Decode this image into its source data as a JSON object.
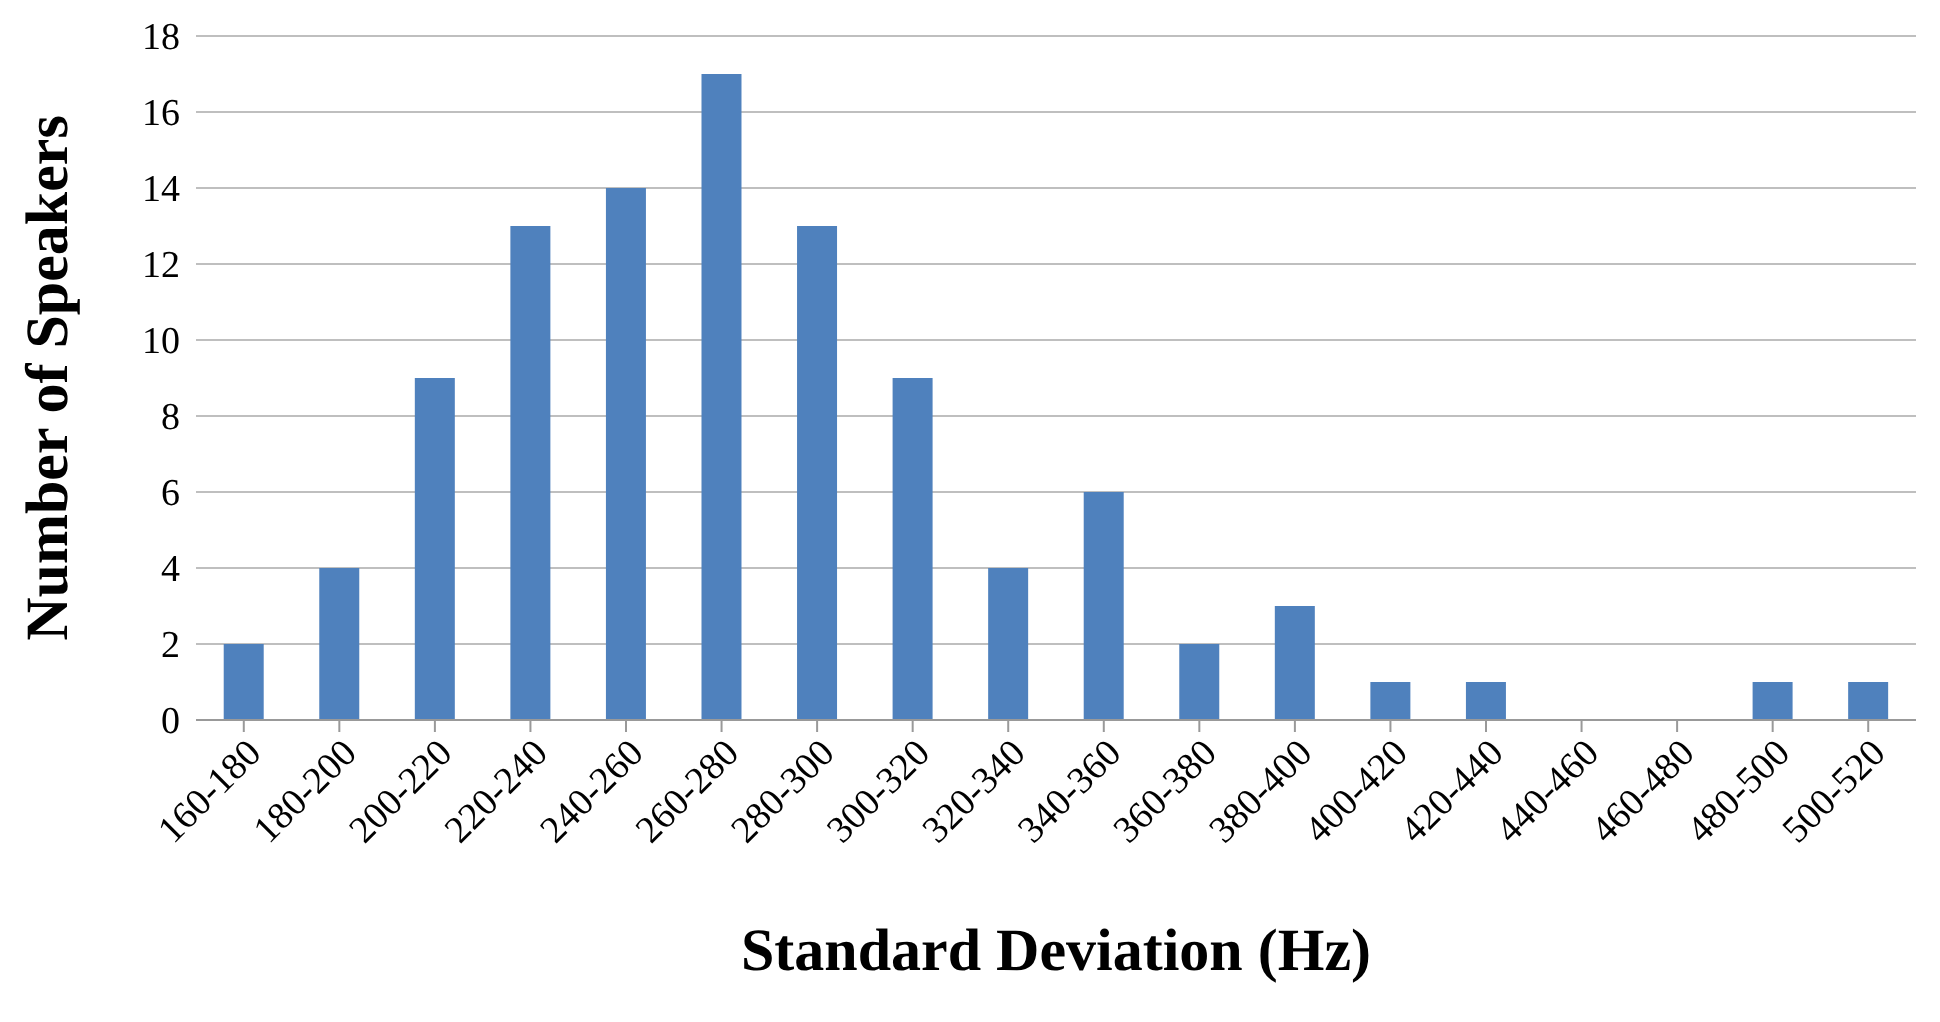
{
  "chart_data": {
    "type": "bar",
    "xlabel": "Standard Deviation (Hz)",
    "ylabel": "Number of Speakers",
    "categories": [
      "160-180",
      "180-200",
      "200-220",
      "220-240",
      "240-260",
      "260-280",
      "280-300",
      "300-320",
      "320-340",
      "340-360",
      "360-380",
      "380-400",
      "400-420",
      "420-440",
      "440-460",
      "460-480",
      "480-500",
      "500-520"
    ],
    "values": [
      2,
      4,
      9,
      13,
      14,
      17,
      13,
      9,
      4,
      6,
      2,
      3,
      1,
      1,
      0,
      0,
      1,
      1
    ],
    "color": "#4f81bd",
    "ylim": [
      0,
      18
    ],
    "yticks": [
      0,
      2,
      4,
      6,
      8,
      10,
      12,
      14,
      16,
      18
    ],
    "grid": "y"
  }
}
